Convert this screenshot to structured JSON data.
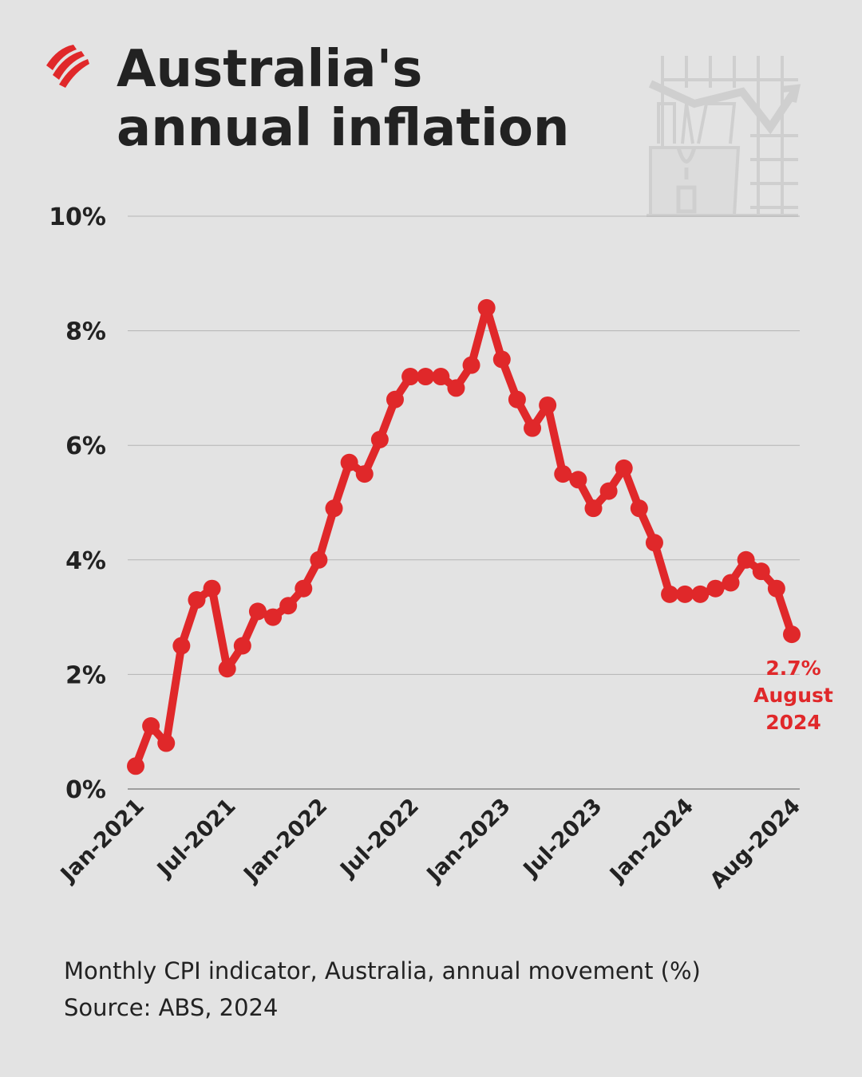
{
  "title": "Australia's annual inflation",
  "logo": "sbs-logo",
  "illustration": "shopping-bag-rising-chart-icon",
  "colors": {
    "background": "#e3e3e3",
    "line": "#e0282a",
    "grid": "#b5b5b5",
    "text": "#222222"
  },
  "chart_data": {
    "type": "line",
    "title": "Australia's annual inflation",
    "xlabel": "",
    "ylabel": "",
    "ylim": [
      0,
      10
    ],
    "yticks": [
      "0%",
      "2%",
      "4%",
      "6%",
      "8%",
      "10%"
    ],
    "ytick_values": [
      0,
      2,
      4,
      6,
      8,
      10
    ],
    "xtick_labels": [
      "Jan-2021",
      "Jul-2021",
      "Jan-2022",
      "Jul-2022",
      "Jan-2023",
      "Jul-2023",
      "Jan-2024",
      "Aug-2024"
    ],
    "xtick_index": [
      0,
      6,
      12,
      18,
      24,
      30,
      36,
      43
    ],
    "grid": "horizontal",
    "markers": true,
    "x": [
      "Jan-2021",
      "Feb-2021",
      "Mar-2021",
      "Apr-2021",
      "May-2021",
      "Jun-2021",
      "Jul-2021",
      "Aug-2021",
      "Sep-2021",
      "Oct-2021",
      "Nov-2021",
      "Dec-2021",
      "Jan-2022",
      "Feb-2022",
      "Mar-2022",
      "Apr-2022",
      "May-2022",
      "Jun-2022",
      "Jul-2022",
      "Aug-2022",
      "Sep-2022",
      "Oct-2022",
      "Nov-2022",
      "Dec-2022",
      "Jan-2023",
      "Feb-2023",
      "Mar-2023",
      "Apr-2023",
      "May-2023",
      "Jun-2023",
      "Jul-2023",
      "Aug-2023",
      "Sep-2023",
      "Oct-2023",
      "Nov-2023",
      "Dec-2023",
      "Jan-2024",
      "Feb-2024",
      "Mar-2024",
      "Apr-2024",
      "May-2024",
      "Jun-2024",
      "Jul-2024",
      "Aug-2024"
    ],
    "values": [
      0.4,
      1.1,
      0.8,
      2.5,
      3.3,
      3.5,
      2.1,
      2.5,
      3.1,
      3.0,
      3.2,
      3.5,
      4.0,
      4.9,
      5.7,
      5.5,
      6.1,
      6.8,
      7.2,
      7.2,
      7.2,
      7.0,
      7.4,
      8.4,
      7.5,
      6.8,
      6.3,
      6.7,
      5.5,
      5.4,
      4.9,
      5.2,
      5.6,
      4.9,
      4.3,
      3.4,
      3.4,
      3.4,
      3.5,
      3.6,
      4.0,
      3.8,
      3.5,
      2.7
    ],
    "annotation": {
      "lines": [
        "2.7%",
        "August",
        "2024"
      ]
    }
  },
  "footer": {
    "description": "Monthly CPI indicator, Australia, annual movement (%)",
    "source": "Source: ABS, 2024"
  }
}
